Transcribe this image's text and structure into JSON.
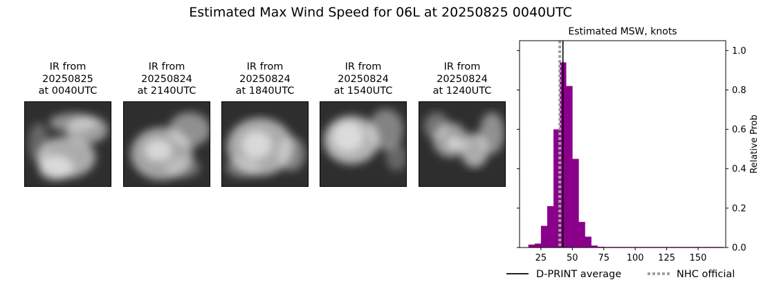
{
  "suptitle": "Estimated Max Wind Speed for 06L at 20250825 0040UTC",
  "ir_panels": [
    {
      "caption": "IR from\n20250825\nat 0040UTC"
    },
    {
      "caption": "IR from\n20250824\nat 2140UTC"
    },
    {
      "caption": "IR from\n20250824\nat 1840UTC"
    },
    {
      "caption": "IR from\n20250824\nat 1540UTC"
    },
    {
      "caption": "IR from\n20250824\nat 1240UTC"
    }
  ],
  "chart_data": {
    "type": "bar",
    "title": "Estimated MSW, knots",
    "xlabel": "",
    "ylabel": "Relative Prob",
    "xlim": [
      8,
      172
    ],
    "ylim": [
      0,
      1.05
    ],
    "xticks": [
      25,
      50,
      75,
      100,
      125,
      150
    ],
    "yticks": [
      0.0,
      0.2,
      0.4,
      0.6,
      0.8,
      1.0
    ],
    "bin_width": 5,
    "bin_starts": [
      15,
      20,
      25,
      30,
      35,
      40,
      45,
      50,
      55,
      60,
      65,
      70,
      75,
      80,
      85,
      90,
      95,
      100,
      105,
      110,
      115,
      120,
      125,
      130,
      135,
      140,
      145,
      150,
      155,
      160,
      165
    ],
    "values": [
      0.015,
      0.02,
      0.11,
      0.21,
      0.6,
      0.94,
      0.82,
      0.45,
      0.13,
      0.055,
      0.01,
      0.004,
      0.003,
      0.003,
      0.003,
      0.003,
      0.003,
      0.003,
      0.003,
      0.003,
      0.003,
      0.003,
      0.003,
      0.003,
      0.003,
      0.003,
      0.003,
      0.003,
      0.003,
      0.003,
      0.003
    ],
    "d_print_average": 42.5,
    "nhc_official": 40,
    "legend": [
      {
        "label": "D-PRINT average",
        "style": "solid",
        "color": "#000000"
      },
      {
        "label": "NHC official",
        "style": "dotted",
        "color": "#a0a0a0"
      }
    ],
    "bar_color": "#8b008b",
    "legend_position": "bottom"
  }
}
